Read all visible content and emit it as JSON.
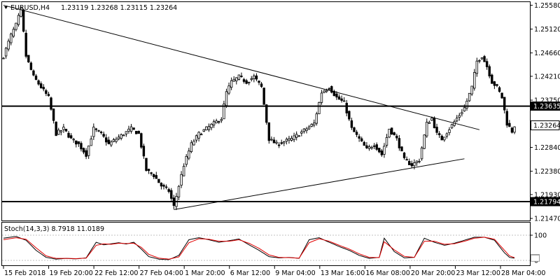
{
  "header": {
    "symbol": "EURUSD,H4",
    "ohlc": "1.23119 1.23268 1.23115 1.23264",
    "indicator": "Stoch(14,3,3) 8.7918 11.0189"
  },
  "colors": {
    "background": "#ffffff",
    "candle": "#000000",
    "stoch_main": "#000000",
    "stoch_signal": "#e00000",
    "price_tag_bg": "#000000",
    "current_tag_border": "#000000"
  },
  "chart_data": {
    "type": "candlestick",
    "symbol": "EURUSD",
    "timeframe": "H4",
    "y_ticks": [
      "1.25580",
      "1.25120",
      "1.24660",
      "1.24210",
      "1.23750",
      "1.23290",
      "1.22840",
      "1.22380",
      "1.21930",
      "1.21470"
    ],
    "ylim": [
      1.2143,
      1.2564
    ],
    "x_ticks": [
      "15 Feb 2018",
      "19 Feb 20:00",
      "22 Feb 12:00",
      "27 Feb 04:00",
      "1 Mar 20:00",
      "6 Mar 12:00",
      "9 Mar 04:00",
      "13 Mar 16:00",
      "16 Mar 08:00",
      "20 Mar 20:00",
      "23 Mar 12:00",
      "28 Mar 04:00"
    ],
    "horizontal_levels": [
      {
        "label": "1.23635",
        "value": 1.23635
      },
      {
        "label": "1.21794",
        "value": 1.21794
      }
    ],
    "current_price": {
      "label": "1.23264",
      "value": 1.23264
    },
    "trendlines": [
      {
        "from": [
          0,
          1.2558
        ],
        "to": [
          190,
          1.2318
        ]
      },
      {
        "from": [
          68,
          1.2164
        ],
        "to": [
          184,
          1.2262
        ]
      }
    ],
    "anchors": [
      [
        0,
        1.246
      ],
      [
        3,
        1.25
      ],
      [
        5,
        1.252
      ],
      [
        7,
        1.255
      ],
      [
        9,
        1.246
      ],
      [
        12,
        1.242
      ],
      [
        15,
        1.24
      ],
      [
        18,
        1.238
      ],
      [
        21,
        1.231
      ],
      [
        24,
        1.232
      ],
      [
        27,
        1.23
      ],
      [
        30,
        1.229
      ],
      [
        33,
        1.227
      ],
      [
        36,
        1.232
      ],
      [
        39,
        1.231
      ],
      [
        42,
        1.229
      ],
      [
        45,
        1.23
      ],
      [
        48,
        1.231
      ],
      [
        51,
        1.232
      ],
      [
        54,
        1.231
      ],
      [
        57,
        1.224
      ],
      [
        60,
        1.223
      ],
      [
        63,
        1.221
      ],
      [
        66,
        1.22
      ],
      [
        68,
        1.217
      ],
      [
        70,
        1.221
      ],
      [
        72,
        1.225
      ],
      [
        75,
        1.229
      ],
      [
        78,
        1.231
      ],
      [
        81,
        1.232
      ],
      [
        84,
        1.233
      ],
      [
        87,
        1.234
      ],
      [
        89,
        1.239
      ],
      [
        91,
        1.241
      ],
      [
        94,
        1.242
      ],
      [
        97,
        1.241
      ],
      [
        100,
        1.242
      ],
      [
        103,
        1.24
      ],
      [
        106,
        1.23
      ],
      [
        109,
        1.229
      ],
      [
        112,
        1.2295
      ],
      [
        115,
        1.23
      ],
      [
        118,
        1.231
      ],
      [
        121,
        1.232
      ],
      [
        124,
        1.233
      ],
      [
        127,
        1.239
      ],
      [
        130,
        1.24
      ],
      [
        133,
        1.238
      ],
      [
        136,
        1.237
      ],
      [
        139,
        1.232
      ],
      [
        142,
        1.23
      ],
      [
        145,
        1.228
      ],
      [
        148,
        1.229
      ],
      [
        151,
        1.227
      ],
      [
        154,
        1.232
      ],
      [
        157,
        1.23
      ],
      [
        160,
        1.226
      ],
      [
        163,
        1.225
      ],
      [
        166,
        1.226
      ],
      [
        169,
        1.233
      ],
      [
        171,
        1.234
      ],
      [
        173,
        1.231
      ],
      [
        175,
        1.23
      ],
      [
        178,
        1.232
      ],
      [
        181,
        1.234
      ],
      [
        184,
        1.236
      ],
      [
        187,
        1.24
      ],
      [
        189,
        1.245
      ],
      [
        191,
        1.246
      ],
      [
        193,
        1.244
      ],
      [
        195,
        1.241
      ],
      [
        197,
        1.24
      ],
      [
        199,
        1.238
      ],
      [
        201,
        1.233
      ],
      [
        203,
        1.2315
      ],
      [
        204,
        1.2326
      ]
    ],
    "stochastic": {
      "name": "Stoch(14,3,3)",
      "main": 8.7918,
      "signal": 11.0189,
      "ylim": [
        0,
        100
      ],
      "y_ticks": [
        "100",
        "0"
      ],
      "main_anchors": [
        [
          0,
          88
        ],
        [
          5,
          95
        ],
        [
          9,
          80
        ],
        [
          13,
          40
        ],
        [
          17,
          12
        ],
        [
          21,
          5
        ],
        [
          25,
          8
        ],
        [
          29,
          6
        ],
        [
          33,
          10
        ],
        [
          37,
          72
        ],
        [
          40,
          62
        ],
        [
          43,
          66
        ],
        [
          46,
          70
        ],
        [
          49,
          65
        ],
        [
          52,
          72
        ],
        [
          55,
          45
        ],
        [
          58,
          15
        ],
        [
          62,
          5
        ],
        [
          66,
          3
        ],
        [
          70,
          20
        ],
        [
          74,
          82
        ],
        [
          78,
          90
        ],
        [
          82,
          82
        ],
        [
          86,
          72
        ],
        [
          90,
          78
        ],
        [
          94,
          85
        ],
        [
          98,
          62
        ],
        [
          102,
          40
        ],
        [
          106,
          15
        ],
        [
          110,
          10
        ],
        [
          114,
          12
        ],
        [
          118,
          8
        ],
        [
          122,
          82
        ],
        [
          126,
          90
        ],
        [
          130,
          72
        ],
        [
          134,
          55
        ],
        [
          138,
          40
        ],
        [
          142,
          20
        ],
        [
          146,
          8
        ],
        [
          150,
          12
        ],
        [
          152,
          88
        ],
        [
          156,
          35
        ],
        [
          160,
          10
        ],
        [
          164,
          12
        ],
        [
          168,
          88
        ],
        [
          172,
          72
        ],
        [
          176,
          60
        ],
        [
          180,
          68
        ],
        [
          184,
          80
        ],
        [
          188,
          92
        ],
        [
          192,
          92
        ],
        [
          196,
          80
        ],
        [
          200,
          30
        ],
        [
          202,
          12
        ],
        [
          204,
          9
        ]
      ],
      "signal_anchors": [
        [
          0,
          82
        ],
        [
          5,
          90
        ],
        [
          9,
          84
        ],
        [
          13,
          50
        ],
        [
          17,
          18
        ],
        [
          21,
          8
        ],
        [
          25,
          8
        ],
        [
          29,
          7
        ],
        [
          33,
          9
        ],
        [
          37,
          60
        ],
        [
          40,
          66
        ],
        [
          43,
          64
        ],
        [
          46,
          68
        ],
        [
          49,
          67
        ],
        [
          52,
          68
        ],
        [
          55,
          52
        ],
        [
          58,
          24
        ],
        [
          62,
          9
        ],
        [
          66,
          5
        ],
        [
          70,
          14
        ],
        [
          74,
          70
        ],
        [
          78,
          86
        ],
        [
          82,
          84
        ],
        [
          86,
          76
        ],
        [
          90,
          76
        ],
        [
          94,
          82
        ],
        [
          98,
          68
        ],
        [
          102,
          48
        ],
        [
          106,
          22
        ],
        [
          110,
          12
        ],
        [
          114,
          11
        ],
        [
          118,
          9
        ],
        [
          122,
          70
        ],
        [
          126,
          86
        ],
        [
          130,
          76
        ],
        [
          134,
          60
        ],
        [
          138,
          45
        ],
        [
          142,
          26
        ],
        [
          146,
          12
        ],
        [
          150,
          11
        ],
        [
          152,
          74
        ],
        [
          156,
          42
        ],
        [
          160,
          16
        ],
        [
          164,
          12
        ],
        [
          168,
          76
        ],
        [
          172,
          76
        ],
        [
          176,
          64
        ],
        [
          180,
          66
        ],
        [
          184,
          76
        ],
        [
          188,
          88
        ],
        [
          192,
          92
        ],
        [
          196,
          84
        ],
        [
          200,
          40
        ],
        [
          202,
          18
        ],
        [
          204,
          11
        ]
      ]
    }
  }
}
